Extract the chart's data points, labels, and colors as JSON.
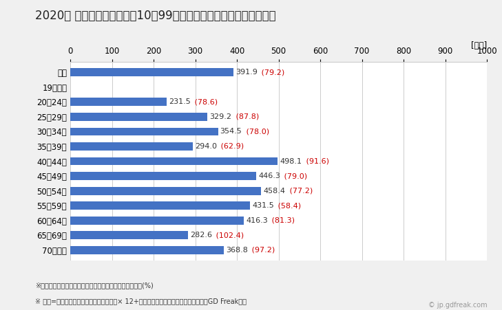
{
  "title": "2020年 民間企業（従業者数10〜99人）フルタイム労働者の平均年収",
  "unit_label": "[万円]",
  "categories": [
    "全体",
    "19歳以下",
    "20〜24歳",
    "25〜29歳",
    "30〜34歳",
    "35〜39歳",
    "40〜44歳",
    "45〜49歳",
    "50〜54歳",
    "55〜59歳",
    "60〜64歳",
    "65〜69歳",
    "70歳以上"
  ],
  "values": [
    391.9,
    0,
    231.5,
    329.2,
    354.5,
    294.0,
    498.1,
    446.3,
    458.4,
    431.5,
    416.3,
    282.6,
    368.8
  ],
  "ratios": [
    79.2,
    null,
    78.6,
    87.8,
    78.0,
    62.9,
    91.6,
    79.0,
    77.2,
    58.4,
    81.3,
    102.4,
    97.2
  ],
  "bar_color": "#4472C4",
  "label_color_value": "#333333",
  "label_color_ratio": "#CC0000",
  "xlim": [
    0,
    1000
  ],
  "xticks": [
    0,
    100,
    200,
    300,
    400,
    500,
    600,
    700,
    800,
    900,
    1000
  ],
  "footnote1": "※（）内は域内の同業種・同年齢層の平均所得に対する比(%)",
  "footnote2": "※ 年収=「きまって支給する現金給与額」× 12+「年間賞与その他特別給与額」としてGD Freak推計",
  "watermark": "© jp.gdfreak.com",
  "title_fontsize": 12,
  "tick_fontsize": 8.5,
  "label_fontsize": 8,
  "footnote_fontsize": 7,
  "background_color": "#F0F0F0",
  "plot_bg_color": "#FFFFFF"
}
